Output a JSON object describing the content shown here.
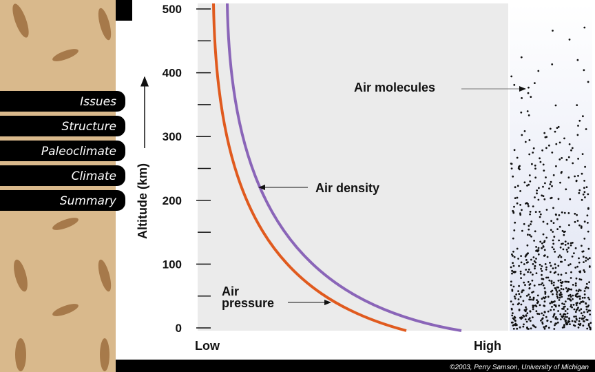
{
  "nav": {
    "items": [
      "Issues",
      "Structure",
      "Paleoclimate",
      "Climate",
      "Summary"
    ]
  },
  "figure": {
    "y_axis_label": "Altitude (km)",
    "y_tick_labels": [
      "500",
      "400",
      "300",
      "200",
      "100",
      "0"
    ],
    "x_labels": [
      "Low",
      "High"
    ],
    "air_molecules": "Air molecules",
    "air_density": "Air density",
    "air_pressure": [
      "Air",
      "pressure"
    ]
  },
  "footer": {
    "copyright": "©2003, Perry Samson, University of Michigan"
  }
}
